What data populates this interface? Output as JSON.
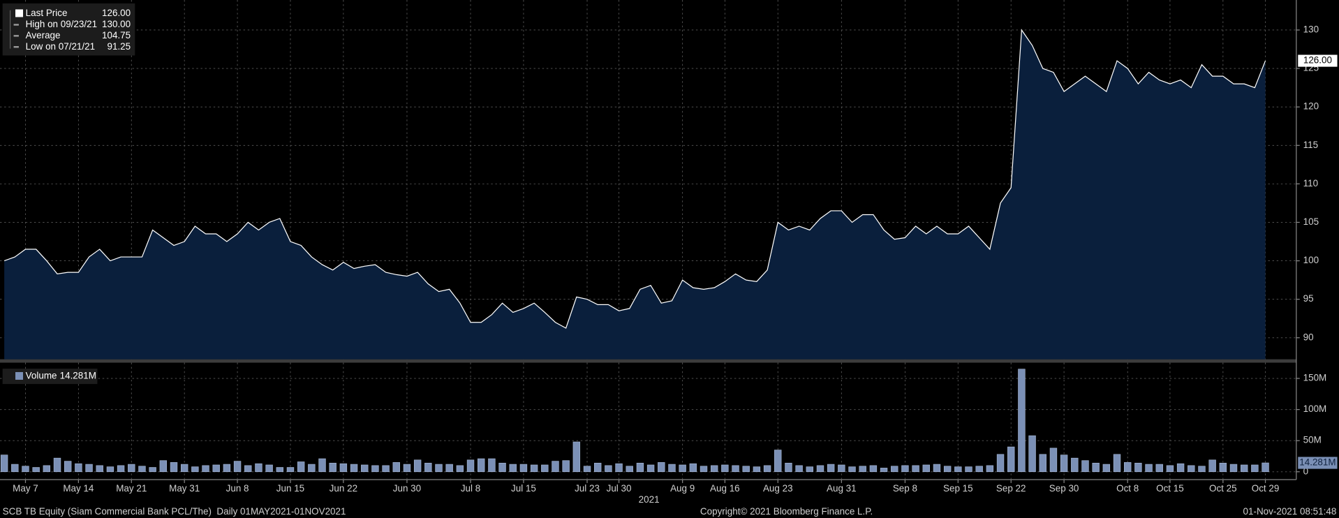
{
  "chart_data": [
    {
      "type": "area",
      "name": "Last Price",
      "color": "#ffffff",
      "fill": "#0a1f3c",
      "legend": [
        {
          "name": "Last Price",
          "value": "126.00"
        },
        {
          "name": "High on 09/23/21",
          "value": "130.00"
        },
        {
          "name": "Average",
          "value": "104.75"
        },
        {
          "name": "Low on 07/21/21",
          "value": "91.25"
        }
      ],
      "last": {
        "value": 126,
        "label": "126.00"
      },
      "values": [
        100,
        100.5,
        101.5,
        101.5,
        100,
        98.3,
        98.5,
        98.5,
        100.5,
        101.5,
        100,
        100.5,
        100.5,
        100.5,
        104,
        103,
        102,
        102.5,
        104.5,
        103.5,
        103.5,
        102.5,
        103.5,
        105,
        104,
        105,
        105.5,
        102.5,
        102,
        100.5,
        99.5,
        98.8,
        99.8,
        99,
        99.3,
        99.5,
        98.5,
        98.2,
        98,
        98.5,
        97,
        96,
        96.3,
        94.5,
        92,
        92,
        93,
        94.5,
        93.3,
        93.8,
        94.5,
        93.3,
        92,
        91.25,
        95.3,
        95,
        94.3,
        94.3,
        93.5,
        93.8,
        96.3,
        96.8,
        94.5,
        94.8,
        97.5,
        96.5,
        96.3,
        96.5,
        97.3,
        98.3,
        97.5,
        97.3,
        98.8,
        105,
        104,
        104.5,
        104,
        105.5,
        106.5,
        106.5,
        105,
        106,
        106,
        104,
        102.8,
        103,
        104.5,
        103.5,
        104.5,
        103.5,
        103.5,
        104.5,
        103,
        101.5,
        107.5,
        109.5,
        130,
        128,
        125,
        124.5,
        122,
        123,
        124,
        123,
        122,
        126,
        125,
        123,
        124.5,
        123.5,
        123,
        123.5,
        122.5,
        125.5,
        124,
        124,
        123,
        123,
        122.5,
        126
      ],
      "ylim": [
        87.2,
        133.9
      ],
      "yticks": [
        90,
        95,
        100,
        105,
        110,
        115,
        120,
        125,
        130
      ],
      "grid": true
    },
    {
      "type": "bar",
      "name": "Volume",
      "color": "#7b90b6",
      "last": {
        "value": 14.281,
        "label": "14.281M"
      },
      "categories": [
        null,
        null,
        "May 7",
        null,
        null,
        null,
        null,
        "May 14",
        null,
        null,
        null,
        null,
        "May 21",
        null,
        null,
        null,
        null,
        "May 31",
        null,
        null,
        null,
        null,
        "Jun 8",
        null,
        null,
        null,
        null,
        "Jun 15",
        null,
        null,
        null,
        null,
        "Jun 22",
        null,
        null,
        null,
        null,
        null,
        "Jun 30",
        null,
        null,
        null,
        null,
        null,
        "Jul 8",
        null,
        null,
        null,
        null,
        "Jul 15",
        null,
        null,
        null,
        null,
        null,
        "Jul 23",
        null,
        null,
        "Jul 30",
        null,
        null,
        null,
        null,
        null,
        "Aug 9",
        null,
        null,
        null,
        "Aug 16",
        null,
        null,
        null,
        null,
        "Aug 23",
        null,
        null,
        null,
        null,
        null,
        "Aug 31",
        null,
        null,
        null,
        null,
        null,
        "Sep 8",
        null,
        null,
        null,
        null,
        "Sep 15",
        null,
        null,
        null,
        null,
        "Sep 22",
        null,
        null,
        null,
        null,
        "Sep 30",
        null,
        null,
        null,
        null,
        null,
        "Oct 8",
        null,
        null,
        null,
        "Oct 15",
        null,
        null,
        null,
        null,
        "Oct 25",
        null,
        null,
        null,
        "Oct 29"
      ],
      "values": [
        27,
        12,
        9,
        7,
        10,
        22,
        17,
        13,
        12,
        10,
        8,
        10,
        12,
        9,
        7,
        18,
        15,
        12,
        8,
        10,
        11,
        12,
        17,
        10,
        13,
        11,
        7,
        7,
        16,
        12,
        21,
        14,
        13,
        12,
        11,
        10,
        10,
        15,
        12,
        19,
        14,
        12,
        12,
        10,
        19,
        21,
        21,
        14,
        12,
        12,
        11,
        11,
        17,
        18,
        48,
        9,
        14,
        10,
        13,
        9,
        14,
        11,
        15,
        12,
        11,
        13,
        9,
        10,
        11,
        10,
        9,
        8,
        10,
        35,
        14,
        10,
        8,
        10,
        12,
        11,
        8,
        9,
        10,
        6,
        9,
        10,
        10,
        11,
        12,
        9,
        8,
        8,
        9,
        10,
        28,
        40,
        165,
        58,
        28,
        38,
        27,
        22,
        18,
        14,
        12,
        28,
        15,
        14,
        12,
        12,
        10,
        13,
        10,
        9,
        19,
        14,
        12,
        11,
        11,
        14.281
      ],
      "ylim": [
        -12.6,
        175.3
      ],
      "yticks": [
        0,
        {
          "value": 50,
          "label": "50M"
        },
        {
          "value": 100,
          "label": "100M"
        },
        {
          "value": 150,
          "label": "150M"
        }
      ],
      "grid": true,
      "xlabel": "2021"
    }
  ],
  "footer": {
    "left": "SCB TB Equity (Siam Commercial Bank PCL/The)  Daily 01MAY2021-01NOV2021",
    "center": "Copyright© 2021 Bloomberg Finance L.P.",
    "right": "01-Nov-2021 08:51:48"
  }
}
